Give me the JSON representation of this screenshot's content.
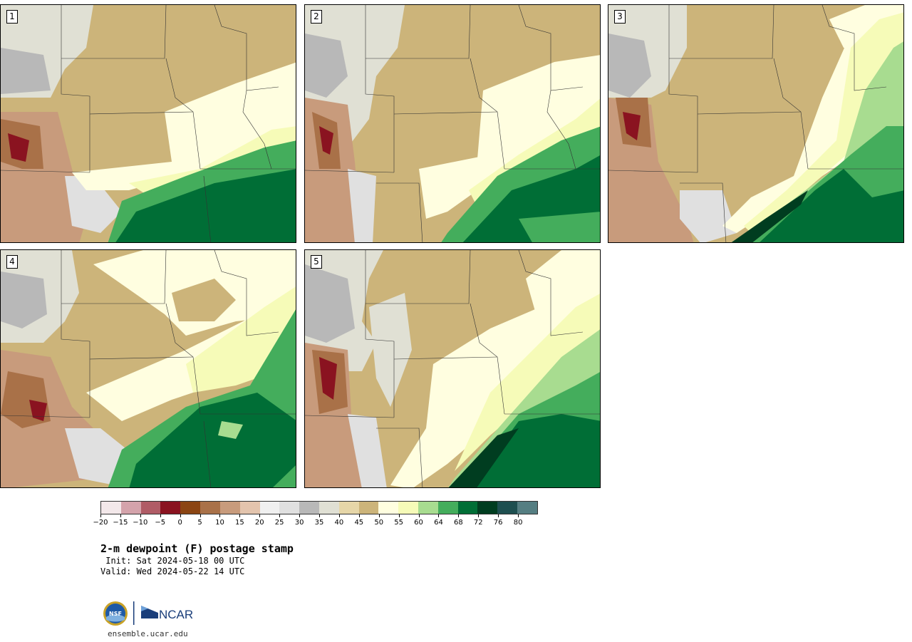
{
  "title": "2-m dewpoint (F) postage stamp",
  "init": " Init: Sat 2024-05-18 00 UTC",
  "valid": "Valid: Wed 2024-05-22 14 UTC",
  "url": "ensemble.ucar.edu",
  "logos": {
    "left": "NSF",
    "right": "NCAR"
  },
  "panels": [
    {
      "label": "1"
    },
    {
      "label": "2"
    },
    {
      "label": "3"
    },
    {
      "label": "4"
    },
    {
      "label": "5"
    }
  ],
  "colorbar": {
    "colors": [
      "#f3e8ea",
      "#d4a3ab",
      "#b05c66",
      "#8a1320",
      "#8b4513",
      "#a97148",
      "#c89b7c",
      "#e3c4ad",
      "#f0f0f0",
      "#e0e0e0",
      "#b8b8b8",
      "#e0e0d4",
      "#e6d6a8",
      "#ccb47a",
      "#fffee0",
      "#f6fbb8",
      "#a8dc90",
      "#44ad5c",
      "#006e36",
      "#003d20",
      "#1e4f50",
      "#557e82"
    ],
    "ticks": [
      "−20",
      "−15",
      "−10",
      "−5",
      "0",
      "5",
      "10",
      "15",
      "20",
      "25",
      "30",
      "35",
      "40",
      "45",
      "50",
      "55",
      "60",
      "64",
      "68",
      "72",
      "76",
      "80"
    ]
  }
}
